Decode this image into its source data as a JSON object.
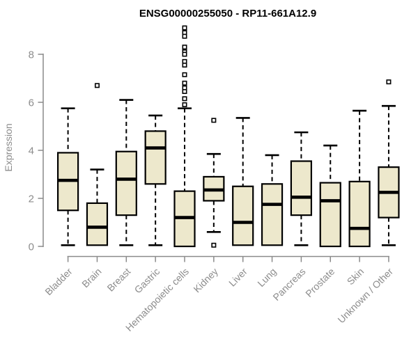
{
  "chart_data": {
    "type": "boxplot",
    "title": "ENSG00000255050 - RP11-661A12.9",
    "ylabel": "Expression",
    "xlabel": "",
    "y_ticks": [
      0,
      2,
      4,
      6,
      8
    ],
    "ylim": [
      0,
      9.2
    ],
    "grid": false,
    "legend": "none",
    "colors": {
      "box_fill": "#EDE8CC",
      "box_stroke": "#000000",
      "median": "#000000",
      "whisker": "#000000",
      "outlier_stroke": "#000000",
      "outlier_fill": "#FFFFFF",
      "axis": "#8A8A8A",
      "tick_text": "#8C8C8C",
      "title": "#000000",
      "background": "#FFFFFF"
    },
    "categories": [
      "Bladder",
      "Brain",
      "Breast",
      "Gastric",
      "Hematopoietic cells",
      "Kidney",
      "Liver",
      "Lung",
      "Pancreas",
      "Prostate",
      "Skin",
      "Unknown / Other"
    ],
    "boxes": [
      {
        "category": "Bladder",
        "low": 0.05,
        "q1": 1.5,
        "median": 2.75,
        "q3": 3.9,
        "high": 5.75,
        "outliers": []
      },
      {
        "category": "Brain",
        "low": 0.05,
        "q1": 0.05,
        "median": 0.8,
        "q3": 1.8,
        "high": 3.2,
        "outliers": [
          6.7
        ]
      },
      {
        "category": "Breast",
        "low": 0.05,
        "q1": 1.3,
        "median": 2.8,
        "q3": 3.95,
        "high": 6.1,
        "outliers": []
      },
      {
        "category": "Gastric",
        "low": 0.05,
        "q1": 2.6,
        "median": 4.1,
        "q3": 4.8,
        "high": 5.45,
        "outliers": []
      },
      {
        "category": "Hematopoietic cells",
        "low": 0.0,
        "q1": 0.0,
        "median": 1.2,
        "q3": 2.3,
        "high": 5.75,
        "outliers": [
          9.1,
          8.9,
          8.75,
          8.3,
          8.1,
          8.0,
          7.7,
          7.55,
          7.15,
          6.8,
          6.6,
          6.45,
          6.15,
          5.9
        ]
      },
      {
        "category": "Kidney",
        "low": 0.6,
        "q1": 1.9,
        "median": 2.35,
        "q3": 2.9,
        "high": 3.85,
        "outliers": [
          5.25,
          0.05
        ]
      },
      {
        "category": "Liver",
        "low": 0.05,
        "q1": 0.05,
        "median": 1.0,
        "q3": 2.5,
        "high": 5.35,
        "outliers": []
      },
      {
        "category": "Lung",
        "low": 0.05,
        "q1": 0.05,
        "median": 1.75,
        "q3": 2.6,
        "high": 3.8,
        "outliers": []
      },
      {
        "category": "Pancreas",
        "low": 0.05,
        "q1": 1.3,
        "median": 2.05,
        "q3": 3.55,
        "high": 4.75,
        "outliers": []
      },
      {
        "category": "Prostate",
        "low": 0.0,
        "q1": 0.0,
        "median": 1.9,
        "q3": 2.65,
        "high": 4.2,
        "outliers": []
      },
      {
        "category": "Skin",
        "low": 0.0,
        "q1": 0.0,
        "median": 0.75,
        "q3": 2.7,
        "high": 5.65,
        "outliers": []
      },
      {
        "category": "Unknown / Other",
        "low": 0.05,
        "q1": 1.2,
        "median": 2.25,
        "q3": 3.3,
        "high": 5.85,
        "outliers": [
          6.85
        ]
      }
    ]
  }
}
